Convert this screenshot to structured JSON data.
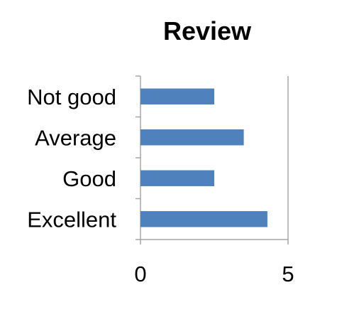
{
  "chart_data": {
    "type": "bar",
    "orientation": "horizontal",
    "title": "Review",
    "xlabel": "",
    "ylabel": "",
    "categories": [
      "Not good",
      "Average",
      "Good",
      "Excellent"
    ],
    "values": [
      2.5,
      3.5,
      2.5,
      4.3
    ],
    "xlim": [
      0,
      5
    ],
    "x_ticks": [
      "0",
      "5"
    ],
    "grid": "vertical line at max",
    "legend": "none",
    "bar_color": "#4F81BD"
  }
}
